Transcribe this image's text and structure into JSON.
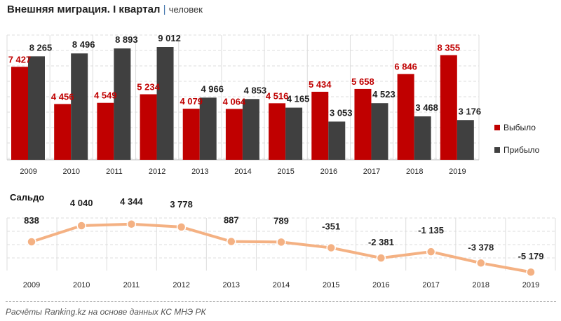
{
  "title": "Внешняя миграция. I квартал",
  "unit": "человек",
  "source": "Расчёты Ranking.kz на основе данных  КС МНЭ РК",
  "colors": {
    "left": "#c00000",
    "arrived": "#404040",
    "saldo": "#f4b183"
  },
  "chart_data": [
    {
      "type": "bar",
      "title": "Внешняя миграция. I квартал",
      "ylabel": "человек",
      "categories": [
        "2009",
        "2010",
        "2011",
        "2012",
        "2013",
        "2014",
        "2015",
        "2016",
        "2017",
        "2018",
        "2019"
      ],
      "series": [
        {
          "name": "Выбыло",
          "values": [
            7427,
            4456,
            4549,
            5234,
            4079,
            4064,
            4516,
            5434,
            5658,
            6846,
            8355
          ]
        },
        {
          "name": "Прибыло",
          "values": [
            8265,
            8496,
            8893,
            9012,
            4966,
            4853,
            4165,
            3053,
            4523,
            3468,
            3176
          ]
        }
      ],
      "labels": {
        "Выбыло": [
          "7 427",
          "4 456",
          "4 549",
          "5 234",
          "4 079",
          "4 064",
          "4 516",
          "5 434",
          "5 658",
          "6 846",
          "8 355"
        ],
        "Прибыло": [
          "8 265",
          "8 496",
          "8 893",
          "9 012",
          "4 966",
          "4 853",
          "4 165",
          "3 053",
          "4 523",
          "3 468",
          "3 176"
        ]
      },
      "legend": "right",
      "grid": true
    },
    {
      "type": "line",
      "title": "Сальдо",
      "categories": [
        "2009",
        "2010",
        "2011",
        "2012",
        "2013",
        "2014",
        "2015",
        "2016",
        "2017",
        "2018",
        "2019"
      ],
      "values": [
        838,
        4040,
        4344,
        3778,
        887,
        789,
        -351,
        -2381,
        -1135,
        -3378,
        -5179
      ],
      "labels": [
        "838",
        "4 040",
        "4 344",
        "3 778",
        "887",
        "789",
        "-351",
        "-2 381",
        "-1 135",
        "-3 378",
        "-5 179"
      ],
      "grid": true
    }
  ]
}
